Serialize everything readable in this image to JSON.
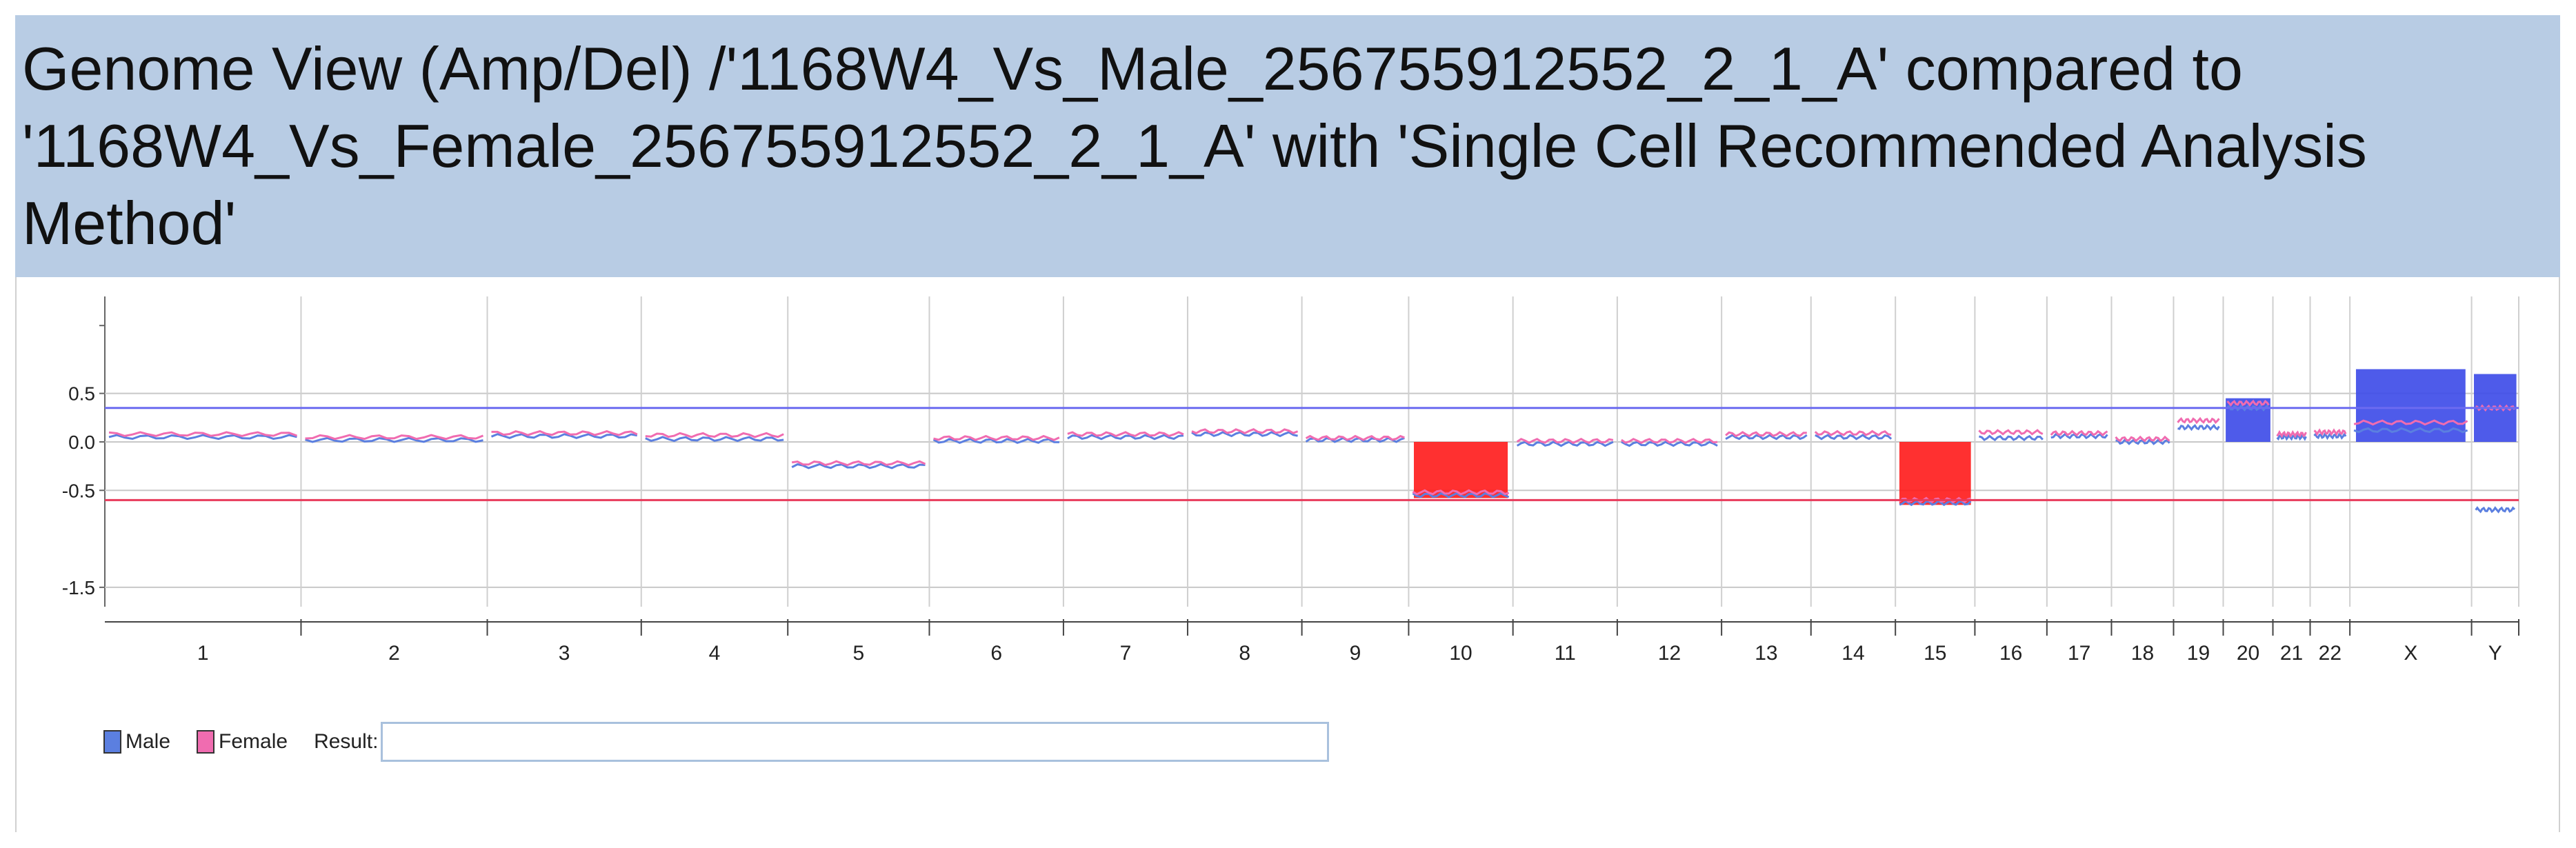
{
  "title": "Genome View (Amp/Del) /'1168W4_Vs_Male_256755912552_2_1_A' compared to\n'1168W4_Vs_Female_256755912552_2_1_A' with 'Single Cell Recommended Analysis\nMethod'",
  "colors": {
    "title_bg": "#b8cce4",
    "male": "#5b7fe0",
    "female": "#f06cb0",
    "amplification": "#3b49e8",
    "deletion": "#ff1a1a",
    "amp_threshold_line": "#6b6bf0",
    "del_threshold_line": "#e83a5a"
  },
  "legend": {
    "male_label": "Male",
    "female_label": "Female",
    "result_label": "Result:",
    "result_value": ""
  },
  "chart_data": {
    "type": "line",
    "y_ticks": [
      {
        "value": 0.5,
        "label": "0.5"
      },
      {
        "value": 0.0,
        "label": "0.0"
      },
      {
        "value": -0.5,
        "label": "-0.5"
      },
      {
        "value": -1.5,
        "label": "-1.5"
      }
    ],
    "ylim": [
      -1.7,
      1.5
    ],
    "grid": true,
    "thresholds": {
      "amplification": 0.35,
      "deletion": -0.6
    },
    "chromosomes": [
      "1",
      "2",
      "3",
      "4",
      "5",
      "6",
      "7",
      "8",
      "9",
      "10",
      "11",
      "12",
      "13",
      "14",
      "15",
      "16",
      "17",
      "18",
      "19",
      "20",
      "21",
      "22",
      "X",
      "Y"
    ],
    "chromosome_relative_sizes": [
      7.9,
      7.5,
      6.2,
      5.9,
      5.7,
      5.4,
      5.0,
      4.6,
      4.3,
      4.2,
      4.2,
      4.2,
      3.6,
      3.4,
      3.2,
      2.9,
      2.6,
      2.5,
      2.0,
      2.0,
      1.5,
      1.6,
      4.9,
      1.9
    ],
    "series": [
      {
        "name": "Male",
        "values": [
          0.05,
          0.02,
          0.06,
          0.03,
          -0.25,
          0.01,
          0.05,
          0.08,
          0.02,
          -0.55,
          -0.02,
          -0.02,
          0.05,
          0.05,
          -0.63,
          0.04,
          0.06,
          0.0,
          0.15,
          0.35,
          0.05,
          0.06,
          0.12,
          -0.7
        ]
      },
      {
        "name": "Female",
        "values": [
          0.08,
          0.05,
          0.09,
          0.07,
          -0.22,
          0.04,
          0.08,
          0.11,
          0.04,
          -0.52,
          0.01,
          0.01,
          0.08,
          0.09,
          -0.6,
          0.1,
          0.09,
          0.03,
          0.22,
          0.4,
          0.08,
          0.1,
          0.2,
          0.35
        ]
      }
    ],
    "calls": [
      {
        "chromosome": "10",
        "type": "deletion",
        "value": -0.58
      },
      {
        "chromosome": "15",
        "type": "deletion",
        "value": -0.65
      },
      {
        "chromosome": "20",
        "type": "amplification",
        "value": 0.45
      },
      {
        "chromosome": "X",
        "type": "amplification",
        "value": 0.75
      },
      {
        "chromosome": "Y",
        "type": "amplification",
        "value": 0.7
      }
    ]
  }
}
